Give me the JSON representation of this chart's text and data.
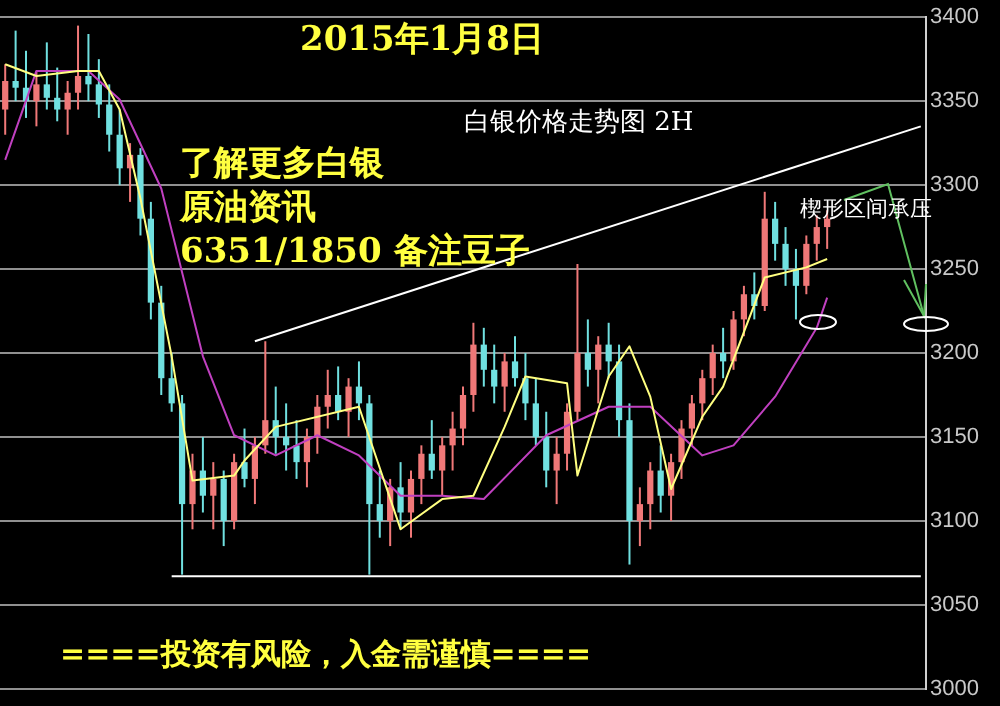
{
  "chart_data": {
    "type": "candlestick",
    "title": "2015年1月8日",
    "subtitle": "白银价格走势图 2H",
    "annotations": [
      "了解更多白银",
      "原油资讯",
      "6351/1850 备注豆子",
      "楔形区间承压",
      "====投资有风险，入金需谨慎===="
    ],
    "categories": [
      null,
      null,
      null,
      null,
      null,
      null,
      null,
      null,
      null,
      null,
      null,
      null,
      null,
      null,
      null,
      null,
      null,
      null,
      null,
      null,
      null,
      null,
      null,
      null,
      null,
      null,
      null,
      null,
      null,
      null,
      null,
      null,
      null,
      null,
      null,
      null,
      null,
      null,
      null,
      null,
      null,
      null,
      null,
      null,
      null,
      null,
      null,
      null,
      null,
      null,
      null,
      null,
      null,
      null,
      null,
      null,
      null,
      null,
      null,
      null,
      null,
      null,
      null,
      null,
      null,
      null,
      null,
      null,
      null,
      null,
      null,
      null,
      null,
      null,
      null,
      null,
      null,
      null,
      null,
      null,
      null,
      null,
      null,
      null,
      null,
      null,
      null,
      null,
      null
    ],
    "ohlc": [
      [
        3345,
        3372,
        3330,
        3362
      ],
      [
        3362,
        3392,
        3350,
        3358
      ],
      [
        3358,
        3380,
        3340,
        3350
      ],
      [
        3350,
        3368,
        3335,
        3360
      ],
      [
        3360,
        3385,
        3345,
        3352
      ],
      [
        3352,
        3370,
        3338,
        3345
      ],
      [
        3345,
        3362,
        3330,
        3355
      ],
      [
        3355,
        3395,
        3345,
        3365
      ],
      [
        3365,
        3390,
        3350,
        3360
      ],
      [
        3360,
        3375,
        3340,
        3348
      ],
      [
        3348,
        3360,
        3320,
        3330
      ],
      [
        3330,
        3345,
        3300,
        3310
      ],
      [
        3310,
        3325,
        3290,
        3318
      ],
      [
        3318,
        3322,
        3270,
        3280
      ],
      [
        3280,
        3290,
        3220,
        3230
      ],
      [
        3230,
        3240,
        3175,
        3185
      ],
      [
        3185,
        3200,
        3165,
        3170
      ],
      [
        3170,
        3175,
        3068,
        3110
      ],
      [
        3110,
        3140,
        3095,
        3130
      ],
      [
        3130,
        3150,
        3105,
        3115
      ],
      [
        3115,
        3135,
        3095,
        3125
      ],
      [
        3125,
        3130,
        3085,
        3100
      ],
      [
        3100,
        3140,
        3095,
        3135
      ],
      [
        3135,
        3155,
        3120,
        3125
      ],
      [
        3125,
        3150,
        3110,
        3145
      ],
      [
        3145,
        3207,
        3140,
        3160
      ],
      [
        3160,
        3180,
        3140,
        3150
      ],
      [
        3150,
        3170,
        3130,
        3145
      ],
      [
        3145,
        3160,
        3125,
        3135
      ],
      [
        3135,
        3155,
        3120,
        3150
      ],
      [
        3150,
        3175,
        3140,
        3168
      ],
      [
        3168,
        3190,
        3155,
        3175
      ],
      [
        3175,
        3192,
        3160,
        3165
      ],
      [
        3165,
        3185,
        3150,
        3180
      ],
      [
        3180,
        3195,
        3160,
        3170
      ],
      [
        3170,
        3175,
        3068,
        3110
      ],
      [
        3110,
        3130,
        3090,
        3100
      ],
      [
        3100,
        3125,
        3085,
        3120
      ],
      [
        3120,
        3135,
        3095,
        3105
      ],
      [
        3105,
        3130,
        3090,
        3125
      ],
      [
        3125,
        3145,
        3110,
        3140
      ],
      [
        3140,
        3160,
        3125,
        3130
      ],
      [
        3130,
        3150,
        3115,
        3145
      ],
      [
        3145,
        3165,
        3130,
        3155
      ],
      [
        3155,
        3180,
        3145,
        3175
      ],
      [
        3175,
        3218,
        3165,
        3205
      ],
      [
        3205,
        3215,
        3180,
        3190
      ],
      [
        3190,
        3205,
        3170,
        3180
      ],
      [
        3180,
        3200,
        3165,
        3195
      ],
      [
        3195,
        3210,
        3180,
        3185
      ],
      [
        3185,
        3200,
        3160,
        3170
      ],
      [
        3170,
        3185,
        3145,
        3150
      ],
      [
        3150,
        3165,
        3120,
        3130
      ],
      [
        3130,
        3150,
        3110,
        3140
      ],
      [
        3140,
        3170,
        3130,
        3165
      ],
      [
        3165,
        3253,
        3160,
        3200
      ],
      [
        3200,
        3220,
        3180,
        3190
      ],
      [
        3190,
        3210,
        3170,
        3205
      ],
      [
        3205,
        3218,
        3185,
        3195
      ],
      [
        3195,
        3205,
        3150,
        3160
      ],
      [
        3160,
        3170,
        3074,
        3100
      ],
      [
        3100,
        3120,
        3085,
        3110
      ],
      [
        3110,
        3135,
        3095,
        3130
      ],
      [
        3130,
        3145,
        3105,
        3115
      ],
      [
        3115,
        3140,
        3100,
        3135
      ],
      [
        3135,
        3160,
        3125,
        3155
      ],
      [
        3155,
        3175,
        3145,
        3170
      ],
      [
        3170,
        3190,
        3160,
        3185
      ],
      [
        3185,
        3205,
        3175,
        3200
      ],
      [
        3200,
        3215,
        3185,
        3195
      ],
      [
        3195,
        3225,
        3190,
        3220
      ],
      [
        3220,
        3240,
        3210,
        3235
      ],
      [
        3235,
        3248,
        3220,
        3228
      ],
      [
        3228,
        3296,
        3225,
        3280
      ],
      [
        3280,
        3290,
        3255,
        3265
      ],
      [
        3265,
        3275,
        3240,
        3250
      ],
      [
        3250,
        3262,
        3220,
        3240
      ],
      [
        3240,
        3270,
        3235,
        3265
      ],
      [
        3265,
        3282,
        3255,
        3275
      ],
      [
        3275,
        3285,
        3262,
        3280
      ],
      null,
      null,
      null,
      null,
      null,
      null,
      null,
      null,
      null
    ],
    "colors": [
      "#f07878",
      "#70e0e0",
      "#70e0e0",
      "#f07878",
      "#70e0e0",
      "#70e0e0",
      "#f07878",
      "#f07878",
      "#70e0e0",
      "#70e0e0",
      "#70e0e0",
      "#70e0e0",
      "#f07878",
      "#70e0e0",
      "#70e0e0",
      "#70e0e0",
      "#70e0e0",
      "#70e0e0",
      "#f07878",
      "#70e0e0",
      "#f07878",
      "#70e0e0",
      "#f07878",
      "#70e0e0",
      "#f07878",
      "#f07878",
      "#70e0e0",
      "#70e0e0",
      "#70e0e0",
      "#f07878",
      "#f07878",
      "#f07878",
      "#70e0e0",
      "#f07878",
      "#70e0e0",
      "#70e0e0",
      "#70e0e0",
      "#f07878",
      "#70e0e0",
      "#f07878",
      "#f07878",
      "#70e0e0",
      "#f07878",
      "#f07878",
      "#f07878",
      "#f07878",
      "#70e0e0",
      "#70e0e0",
      "#f07878",
      "#70e0e0",
      "#70e0e0",
      "#70e0e0",
      "#70e0e0",
      "#f07878",
      "#f07878",
      "#f07878",
      "#70e0e0",
      "#f07878",
      "#70e0e0",
      "#70e0e0",
      "#70e0e0",
      "#f07878",
      "#f07878",
      "#70e0e0",
      "#f07878",
      "#f07878",
      "#f07878",
      "#f07878",
      "#f07878",
      "#70e0e0",
      "#f07878",
      "#f07878",
      "#70e0e0",
      "#f07878",
      "#70e0e0",
      "#70e0e0",
      "#70e0e0",
      "#f07878",
      "#f07878",
      "#f07878",
      null,
      null,
      null,
      null,
      null,
      null,
      null,
      null,
      null
    ],
    "series": [
      {
        "type": "line",
        "color": "#ffff80",
        "values": [
          3372,
          null,
          null,
          3365,
          null,
          null,
          null,
          3368,
          null,
          3368,
          null,
          3345,
          null,
          3292,
          null,
          null,
          3198,
          null,
          3124,
          null,
          null,
          null,
          3127,
          3136,
          null,
          null,
          3156,
          null,
          null,
          null,
          null,
          null,
          null,
          null,
          3168,
          null,
          null,
          null,
          3095,
          null,
          null,
          null,
          3113,
          null,
          null,
          3115,
          null,
          null,
          3156,
          null,
          3186,
          null,
          null,
          null,
          3182,
          3127,
          null,
          null,
          3186,
          null,
          3204,
          null,
          3174,
          null,
          3119,
          null,
          null,
          3162,
          null,
          3180,
          null,
          null,
          null,
          3245,
          null,
          null,
          null,
          3251,
          null,
          3256,
          null,
          null,
          null,
          null,
          null,
          null,
          null,
          null,
          null
        ]
      },
      {
        "type": "line",
        "color": "#c040c0",
        "values": [
          3315,
          null,
          null,
          3368,
          null,
          null,
          null,
          null,
          3368,
          null,
          null,
          3351,
          null,
          null,
          null,
          3298,
          null,
          null,
          null,
          3198,
          null,
          null,
          3151,
          null,
          null,
          null,
          3139,
          null,
          null,
          null,
          3151,
          null,
          null,
          null,
          3139,
          null,
          null,
          null,
          3115,
          null,
          null,
          null,
          3115,
          null,
          null,
          null,
          3113,
          null,
          null,
          null,
          null,
          null,
          3151,
          null,
          null,
          null,
          null,
          null,
          3168,
          null,
          null,
          null,
          3168,
          null,
          null,
          null,
          null,
          3139,
          null,
          null,
          3145,
          null,
          null,
          null,
          3174,
          null,
          null,
          null,
          3215,
          3233,
          null,
          null,
          null,
          null,
          null,
          null,
          null,
          null,
          null
        ]
      },
      {
        "type": "line",
        "color": "#ffffff",
        "values": [
          null,
          null,
          null,
          null,
          null,
          null,
          null,
          null,
          null,
          null,
          null,
          null,
          null,
          null,
          null,
          null,
          null,
          null,
          null,
          null,
          null,
          null,
          null,
          null,
          3207,
          null,
          null,
          null,
          null,
          null,
          null,
          null,
          null,
          null,
          null,
          null,
          null,
          null,
          null,
          null,
          null,
          null,
          null,
          null,
          null,
          null,
          null,
          null,
          null,
          null,
          null,
          null,
          null,
          null,
          null,
          null,
          null,
          null,
          null,
          null,
          null,
          null,
          null,
          null,
          null,
          null,
          null,
          null,
          null,
          null,
          null,
          null,
          null,
          null,
          null,
          null,
          null,
          null,
          null,
          null,
          null,
          null,
          null,
          null,
          null,
          null,
          null,
          null,
          3335
        ]
      },
      {
        "type": "line",
        "color": "#ffffff",
        "values": [
          null,
          null,
          null,
          null,
          null,
          null,
          null,
          null,
          null,
          null,
          null,
          null,
          null,
          null,
          null,
          null,
          3067,
          null,
          null,
          null,
          null,
          null,
          null,
          null,
          null,
          null,
          null,
          null,
          null,
          null,
          null,
          null,
          null,
          null,
          null,
          null,
          null,
          null,
          null,
          null,
          null,
          null,
          null,
          null,
          null,
          null,
          null,
          null,
          null,
          null,
          null,
          null,
          null,
          null,
          null,
          null,
          null,
          null,
          null,
          null,
          null,
          null,
          null,
          null,
          null,
          null,
          null,
          null,
          null,
          null,
          null,
          null,
          null,
          null,
          null,
          null,
          null,
          null,
          null,
          null,
          null,
          null,
          null,
          null,
          null,
          null,
          null,
          null,
          3067
        ]
      }
    ],
    "ylim": [
      3000,
      3400
    ],
    "yticks": [
      3000,
      3050,
      3100,
      3150,
      3200,
      3250,
      3300,
      3350,
      3400
    ],
    "grid": "y",
    "tick_labels": "y",
    "legend": false
  }
}
